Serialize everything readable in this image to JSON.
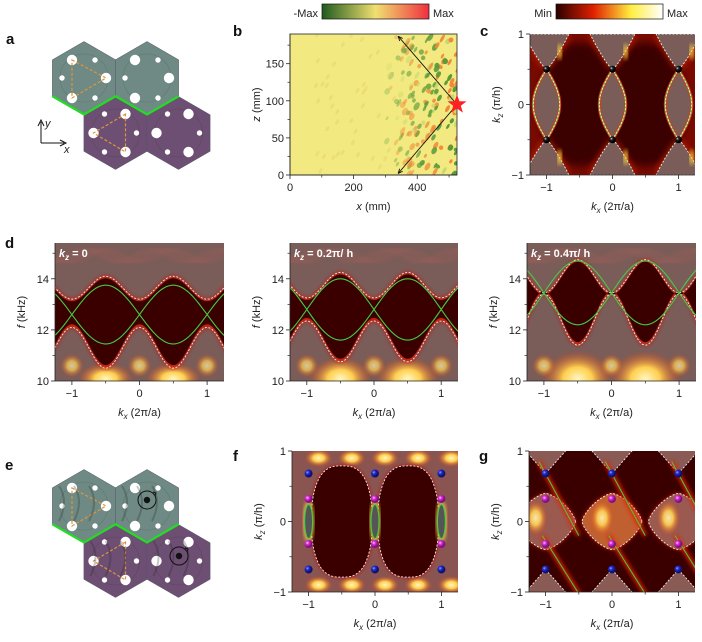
{
  "panel_labels": {
    "a": "a",
    "b": "b",
    "c": "c",
    "d": "d",
    "e": "e",
    "f": "f",
    "g": "g"
  },
  "panel_a": {
    "axis_x": "x",
    "axis_y": "y",
    "colors": {
      "top_domain": "#6f8a84",
      "bottom_domain": "#6e4f74",
      "interface": "#22dd22",
      "triangle": "#e0943a"
    }
  },
  "panel_e": {
    "colors": {
      "top_domain": "#6f8a84",
      "bottom_domain": "#6e4f74",
      "interface": "#22dd22"
    }
  },
  "colorbar_b": {
    "min_label": "-Max",
    "max_label": "Max",
    "colors": [
      "#1e5a1e",
      "#f0e070",
      "#f03040"
    ]
  },
  "colorbar_c": {
    "min_label": "Min",
    "max_label": "Max",
    "colors": [
      "#2a0000",
      "#e02000",
      "#ffee40",
      "#ffffff"
    ]
  },
  "chart_data": [
    {
      "panel": "b",
      "type": "heatmap",
      "xlabel": {
        "var": "x",
        "unit": " (mm)"
      },
      "ylabel": {
        "var": "z",
        "unit": " (mm)"
      },
      "xlim": [
        0,
        525
      ],
      "ylim": [
        0,
        190
      ],
      "xticks": [
        "0",
        "200",
        "400"
      ],
      "xtick_values": [
        0,
        200,
        400
      ],
      "yticks": [
        "0",
        "50",
        "100",
        "150"
      ],
      "ytick_values": [
        0,
        50,
        100,
        150
      ],
      "source_marker": {
        "shape": "star",
        "color": "#ff2020",
        "x": 525,
        "z": 95
      }
    },
    {
      "panel": "c",
      "type": "heatmap",
      "xlabel": {
        "var": "k",
        "sub": "x",
        "unit": " (2π/a)"
      },
      "ylabel": {
        "var": "k",
        "sub": "z",
        "unit": " (π/h)"
      },
      "xlim": [
        -1.25,
        1.25
      ],
      "ylim": [
        -1,
        1
      ],
      "xticks": [
        "−1",
        "0",
        "1"
      ],
      "xtick_values": [
        -1,
        0,
        1
      ],
      "yticks": [
        "−1",
        "0",
        "1"
      ],
      "ytick_values": [
        -1,
        0,
        1
      ],
      "points": [
        {
          "kx": -1,
          "kz": 0.5
        },
        {
          "kx": 0,
          "kz": 0.5
        },
        {
          "kx": 1,
          "kz": 0.5
        },
        {
          "kx": -1,
          "kz": -0.5
        },
        {
          "kx": 0,
          "kz": -0.5
        },
        {
          "kx": 1,
          "kz": -0.5
        }
      ],
      "point_color": "#111111"
    },
    {
      "panel": "d1",
      "type": "heatmap",
      "annotation": {
        "var": "k",
        "sub": "z",
        "text": " = 0"
      },
      "xlabel": {
        "var": "k",
        "sub": "x",
        "unit": " (2π/a)"
      },
      "ylabel": {
        "var": "f",
        "unit": " (kHz)"
      },
      "xlim": [
        -1.25,
        1.25
      ],
      "ylim": [
        10,
        15.4
      ],
      "xticks": [
        "−1",
        "0",
        "1"
      ],
      "xtick_values": [
        -1,
        0,
        1
      ],
      "yticks": [
        "10",
        "12",
        "14"
      ],
      "ytick_values": [
        10,
        12,
        14
      ]
    },
    {
      "panel": "d2",
      "type": "heatmap",
      "annotation": {
        "var": "k",
        "sub": "z",
        "text": " = 0.2π/ h"
      },
      "xlabel": {
        "var": "k",
        "sub": "x",
        "unit": " (2π/a)"
      },
      "ylabel": {
        "var": "f",
        "unit": " (kHz)"
      },
      "xlim": [
        -1.25,
        1.25
      ],
      "ylim": [
        10,
        15.4
      ],
      "xticks": [
        "−1",
        "0",
        "1"
      ],
      "xtick_values": [
        -1,
        0,
        1
      ],
      "yticks": [
        "10",
        "12",
        "14"
      ],
      "ytick_values": [
        10,
        12,
        14
      ]
    },
    {
      "panel": "d3",
      "type": "heatmap",
      "annotation": {
        "var": "k",
        "sub": "z",
        "text": " = 0.4π/ h"
      },
      "xlabel": {
        "var": "k",
        "sub": "x",
        "unit": " (2π/a)"
      },
      "ylabel": {
        "var": "f",
        "unit": " (kHz)"
      },
      "xlim": [
        -1.25,
        1.25
      ],
      "ylim": [
        10,
        15.4
      ],
      "xticks": [
        "−1",
        "0",
        "1"
      ],
      "xtick_values": [
        -1,
        0,
        1
      ],
      "yticks": [
        "10",
        "12",
        "14"
      ],
      "ytick_values": [
        10,
        12,
        14
      ]
    },
    {
      "panel": "f",
      "type": "heatmap",
      "xlabel": {
        "var": "k",
        "sub": "x",
        "unit": " (2π/a)"
      },
      "ylabel": {
        "var": "k",
        "sub": "z",
        "unit": " (π/h)"
      },
      "xlim": [
        -1.25,
        1.25
      ],
      "ylim": [
        -1,
        1
      ],
      "xticks": [
        "−1",
        "0",
        "1"
      ],
      "xtick_values": [
        -1,
        0,
        1
      ],
      "yticks": [
        "−1",
        "0",
        "1"
      ],
      "ytick_values": [
        -1,
        0,
        1
      ],
      "points_blue": [
        0.68,
        -0.68
      ],
      "points_magenta": [
        0.32,
        -0.32
      ],
      "point_kx": [
        -1,
        0,
        1
      ],
      "colors": {
        "blue": "#2030e0",
        "magenta": "#e030e0"
      }
    },
    {
      "panel": "g",
      "type": "heatmap",
      "xlabel": {
        "var": "k",
        "sub": "x",
        "unit": " (2π/a)"
      },
      "ylabel": {
        "var": "k",
        "sub": "z",
        "unit": " (π/h)"
      },
      "xlim": [
        -1.25,
        1.25
      ],
      "ylim": [
        -1,
        1
      ],
      "xticks": [
        "−1",
        "0",
        "1"
      ],
      "xtick_values": [
        -1,
        0,
        1
      ],
      "yticks": [
        "−1",
        "0",
        "1"
      ],
      "ytick_values": [
        -1,
        0,
        1
      ],
      "points_blue": [
        0.68,
        -0.68
      ],
      "points_magenta": [
        0.32,
        -0.32
      ],
      "point_kx": [
        -1,
        0,
        1
      ],
      "colors": {
        "blue": "#2030e0",
        "magenta": "#e030e0"
      }
    }
  ]
}
